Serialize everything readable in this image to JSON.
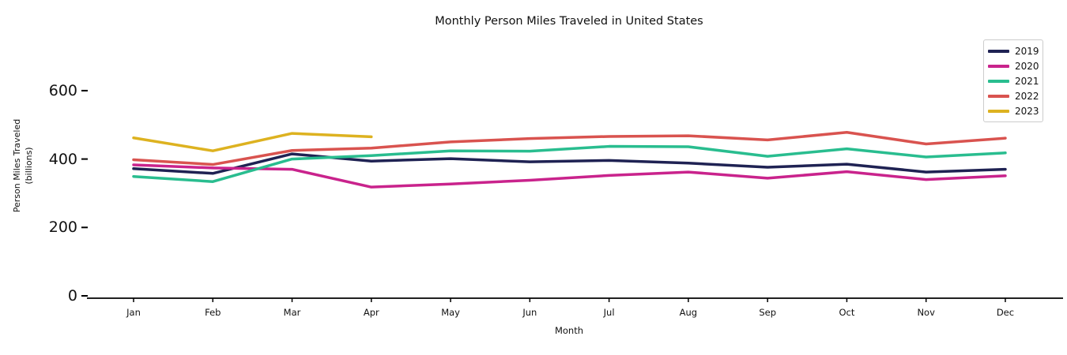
{
  "chart_data": {
    "type": "line",
    "title": "Monthly Person Miles Traveled in United States",
    "xlabel": "Month",
    "ylabel": "Person Miles Traveled",
    "ylabel_line2": "(billions)",
    "categories": [
      "Jan",
      "Feb",
      "Mar",
      "Apr",
      "May",
      "Jun",
      "Jul",
      "Aug",
      "Sep",
      "Oct",
      "Nov",
      "Dec"
    ],
    "yticks": [
      0,
      200,
      400,
      600
    ],
    "ylim": [
      0,
      660
    ],
    "grid": false,
    "legend_position": "upper right",
    "axis_color": "#000000",
    "series": [
      {
        "name": "2019",
        "color": "#1f2253",
        "values": [
          372,
          358,
          415,
          394,
          401,
          392,
          396,
          388,
          376,
          385,
          362,
          370
        ]
      },
      {
        "name": "2020",
        "color": "#c9238c",
        "values": [
          383,
          374,
          370,
          318,
          327,
          338,
          352,
          362,
          344,
          363,
          340,
          351
        ]
      },
      {
        "name": "2021",
        "color": "#29bd8f",
        "values": [
          349,
          334,
          400,
          410,
          424,
          423,
          437,
          436,
          408,
          430,
          406,
          418
        ]
      },
      {
        "name": "2022",
        "color": "#d9534f",
        "values": [
          398,
          384,
          425,
          432,
          450,
          460,
          466,
          468,
          456,
          478,
          444,
          461
        ]
      },
      {
        "name": "2023",
        "color": "#ddb220",
        "values": [
          462,
          424,
          475,
          465
        ]
      }
    ]
  }
}
